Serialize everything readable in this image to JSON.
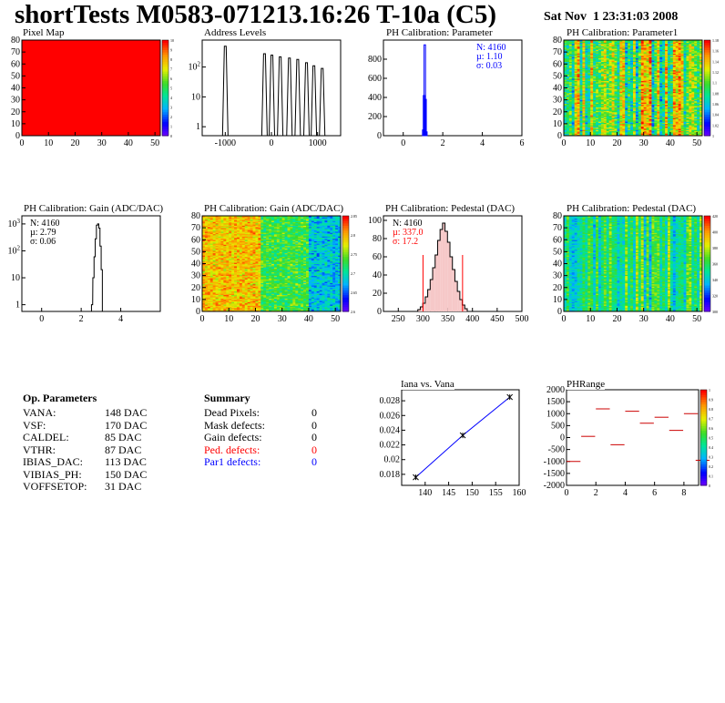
{
  "header": {
    "title": "shortTests M0583-071213.16:26 T-10a (C5)",
    "date": "Sat Nov  1 23:31:03 2008"
  },
  "op_parameters": {
    "heading": "Op. Parameters",
    "rows": [
      {
        "name": "VANA:",
        "value": "148 DAC"
      },
      {
        "name": "VSF:",
        "value": "170 DAC"
      },
      {
        "name": "CALDEL:",
        "value": "85 DAC"
      },
      {
        "name": "VTHR:",
        "value": "87 DAC"
      },
      {
        "name": "IBIAS_DAC:",
        "value": "113 DAC"
      },
      {
        "name": "VIBIAS_PH:",
        "value": "150 DAC"
      },
      {
        "name": "VOFFSETOP:",
        "value": "31 DAC"
      }
    ]
  },
  "summary": {
    "heading": "Summary",
    "rows": [
      {
        "name": "Dead Pixels:",
        "value": "0",
        "color": "#000000"
      },
      {
        "name": "Mask defects:",
        "value": "0",
        "color": "#000000"
      },
      {
        "name": "Gain defects:",
        "value": "0",
        "color": "#000000"
      },
      {
        "name": "Ped. defects:",
        "value": "0",
        "color": "#ff0000"
      },
      {
        "name": "Par1 defects:",
        "value": "0",
        "color": "#0000ff"
      }
    ]
  },
  "chart_data": [
    {
      "id": "pixel-map",
      "type": "heatmap",
      "title": "Pixel Map",
      "xlim": [
        0,
        52
      ],
      "ylim": [
        0,
        80
      ],
      "xticks": [
        "0",
        "10",
        "20",
        "30",
        "40",
        "50"
      ],
      "yticks": [
        "0",
        "10",
        "20",
        "30",
        "40",
        "50",
        "60",
        "70",
        "80"
      ],
      "fill_color": "#ff0000",
      "z_range": [
        0,
        10
      ],
      "z_ticks": [
        "0",
        "1",
        "2",
        "3",
        "4",
        "5",
        "6",
        "7",
        "8",
        "9",
        "10"
      ]
    },
    {
      "id": "address-levels",
      "type": "bar",
      "title": "Address Levels",
      "xlim": [
        -1500,
        1500
      ],
      "xticks": [
        "-1000",
        "0",
        "1000"
      ],
      "yscale": "log",
      "yticks": [
        "1",
        "10",
        "10^2"
      ],
      "peaks": [
        {
          "x": -1000,
          "y": 500
        },
        {
          "x": -150,
          "y": 280
        },
        {
          "x": 10,
          "y": 250
        },
        {
          "x": 190,
          "y": 220
        },
        {
          "x": 390,
          "y": 200
        },
        {
          "x": 570,
          "y": 180
        },
        {
          "x": 760,
          "y": 140
        },
        {
          "x": 920,
          "y": 110
        },
        {
          "x": 1100,
          "y": 90
        }
      ]
    },
    {
      "id": "ph-calibration-parameter",
      "type": "bar",
      "title": "PH Calibration: Parameter",
      "xlim": [
        -1,
        6
      ],
      "ylim": [
        0,
        1000
      ],
      "xticks": [
        "0",
        "2",
        "4",
        "6"
      ],
      "yticks": [
        "0",
        "200",
        "400",
        "600",
        "800"
      ],
      "stats": [
        "N: 4160",
        "µ: 1.10",
        "σ: 0.03"
      ],
      "stat_color": "#0000ff",
      "line_color": "#0000ff",
      "bins": [
        {
          "x": 1.02,
          "y": 60
        },
        {
          "x": 1.06,
          "y": 420
        },
        {
          "x": 1.1,
          "y": 950
        },
        {
          "x": 1.14,
          "y": 380
        },
        {
          "x": 1.18,
          "y": 40
        }
      ]
    },
    {
      "id": "ph-calibration-parameter1",
      "type": "heatmap",
      "title": "PH Calibration: Parameter1",
      "xlim": [
        0,
        52
      ],
      "ylim": [
        0,
        80
      ],
      "xticks": [
        "0",
        "10",
        "20",
        "30",
        "40",
        "50"
      ],
      "yticks": [
        "0",
        "10",
        "20",
        "30",
        "40",
        "50",
        "60",
        "70",
        "80"
      ],
      "z_range": [
        1.0,
        1.2
      ],
      "z_ticks": [
        "1",
        "1.02",
        "1.04",
        "1.06",
        "1.08",
        "1.1",
        "1.12",
        "1.14",
        "1.16",
        "1.18"
      ]
    },
    {
      "id": "gain-histogram",
      "type": "bar",
      "title": "PH Calibration: Gain (ADC/DAC)",
      "xlim": [
        -1,
        6
      ],
      "xticks": [
        "0",
        "2",
        "4"
      ],
      "yscale": "log",
      "yticks": [
        "1",
        "10",
        "10^2",
        "10^3"
      ],
      "stats": [
        "N: 4160",
        "µ: 2.79",
        "σ: 0.06"
      ],
      "stat_color": "#000000",
      "bins": [
        {
          "x": 2.55,
          "y": 1
        },
        {
          "x": 2.62,
          "y": 10
        },
        {
          "x": 2.68,
          "y": 60
        },
        {
          "x": 2.74,
          "y": 280
        },
        {
          "x": 2.8,
          "y": 900
        },
        {
          "x": 2.86,
          "y": 1000
        },
        {
          "x": 2.92,
          "y": 700
        },
        {
          "x": 2.98,
          "y": 150
        },
        {
          "x": 3.04,
          "y": 20
        }
      ]
    },
    {
      "id": "gain-map",
      "type": "heatmap",
      "title": "PH Calibration: Gain (ADC/DAC)",
      "xlim": [
        0,
        52
      ],
      "ylim": [
        0,
        80
      ],
      "xticks": [
        "0",
        "10",
        "20",
        "30",
        "40",
        "50"
      ],
      "yticks": [
        "0",
        "10",
        "20",
        "30",
        "40",
        "50",
        "60",
        "70",
        "80"
      ],
      "z_range": [
        2.6,
        2.9
      ],
      "z_ticks": [
        "2.6",
        "2.65",
        "2.7",
        "2.75",
        "2.8",
        "2.85"
      ]
    },
    {
      "id": "pedestal-histogram",
      "type": "bar",
      "title": "PH Calibration: Pedestal (DAC)",
      "xlim": [
        220,
        500
      ],
      "ylim": [
        0,
        105
      ],
      "xticks": [
        "250",
        "300",
        "350",
        "400",
        "450",
        "500"
      ],
      "yticks": [
        "0",
        "20",
        "40",
        "60",
        "80",
        "100"
      ],
      "stats": [
        "N: 4160",
        "µ: 337.0",
        "σ: 17.2"
      ],
      "stat_colors": [
        "#000000",
        "#ff0000",
        "#ff0000"
      ],
      "cut_lines": [
        300,
        380
      ],
      "cut_line_height": 62,
      "bins": [
        {
          "x": 292,
          "y": 2
        },
        {
          "x": 297,
          "y": 5
        },
        {
          "x": 302,
          "y": 9
        },
        {
          "x": 307,
          "y": 16
        },
        {
          "x": 312,
          "y": 24
        },
        {
          "x": 317,
          "y": 35
        },
        {
          "x": 322,
          "y": 48
        },
        {
          "x": 327,
          "y": 62
        },
        {
          "x": 332,
          "y": 78
        },
        {
          "x": 337,
          "y": 90
        },
        {
          "x": 342,
          "y": 97
        },
        {
          "x": 347,
          "y": 88
        },
        {
          "x": 352,
          "y": 76
        },
        {
          "x": 357,
          "y": 60
        },
        {
          "x": 362,
          "y": 46
        },
        {
          "x": 367,
          "y": 33
        },
        {
          "x": 372,
          "y": 22
        },
        {
          "x": 377,
          "y": 13
        },
        {
          "x": 382,
          "y": 7
        },
        {
          "x": 387,
          "y": 3
        }
      ]
    },
    {
      "id": "pedestal-map",
      "type": "heatmap",
      "title": "PH Calibration: Pedestal (DAC)",
      "xlim": [
        0,
        52
      ],
      "ylim": [
        0,
        80
      ],
      "xticks": [
        "0",
        "10",
        "20",
        "30",
        "40",
        "50"
      ],
      "yticks": [
        "0",
        "10",
        "20",
        "30",
        "40",
        "50",
        "60",
        "70",
        "80"
      ],
      "z_range": [
        290,
        420
      ],
      "z_ticks": [
        "300",
        "320",
        "340",
        "360",
        "380",
        "400",
        "420"
      ]
    },
    {
      "id": "iana-vs-vana",
      "type": "line",
      "title": "Iana vs. Vana",
      "xlim": [
        135,
        160
      ],
      "ylim": [
        0.0165,
        0.0295
      ],
      "xticks": [
        "140",
        "145",
        "150",
        "155",
        "160"
      ],
      "yticks": [
        "0.018",
        "0.02",
        "0.022",
        "0.024",
        "0.026",
        "0.028"
      ],
      "line_color": "#0000ff",
      "points": [
        {
          "x": 138,
          "y": 0.0176
        },
        {
          "x": 148,
          "y": 0.0233
        },
        {
          "x": 158,
          "y": 0.0285
        }
      ]
    },
    {
      "id": "ph-range",
      "type": "scatter",
      "title": "PHRange",
      "xlim": [
        0,
        9
      ],
      "ylim": [
        -2000,
        2000
      ],
      "xticks": [
        "0",
        "2",
        "4",
        "6",
        "8"
      ],
      "yticks": [
        "-2000",
        "-1500",
        "-1000",
        "-500",
        "0",
        "500",
        "1000",
        "1500",
        "2000"
      ],
      "z_ticks": [
        "0",
        "0.1",
        "0.2",
        "0.3",
        "0.4",
        "0.5",
        "0.6",
        "0.7",
        "0.8",
        "0.9",
        "1"
      ],
      "segment_color": "#cc0000",
      "segments": [
        {
          "x": 0,
          "y": -1000
        },
        {
          "x": 1,
          "y": 50
        },
        {
          "x": 2,
          "y": 1200
        },
        {
          "x": 3,
          "y": -300
        },
        {
          "x": 4,
          "y": 1100
        },
        {
          "x": 5,
          "y": 600
        },
        {
          "x": 6,
          "y": 850
        },
        {
          "x": 7,
          "y": 300
        },
        {
          "x": 8,
          "y": 1000
        },
        {
          "x": 8.8,
          "y": -950
        }
      ]
    }
  ]
}
